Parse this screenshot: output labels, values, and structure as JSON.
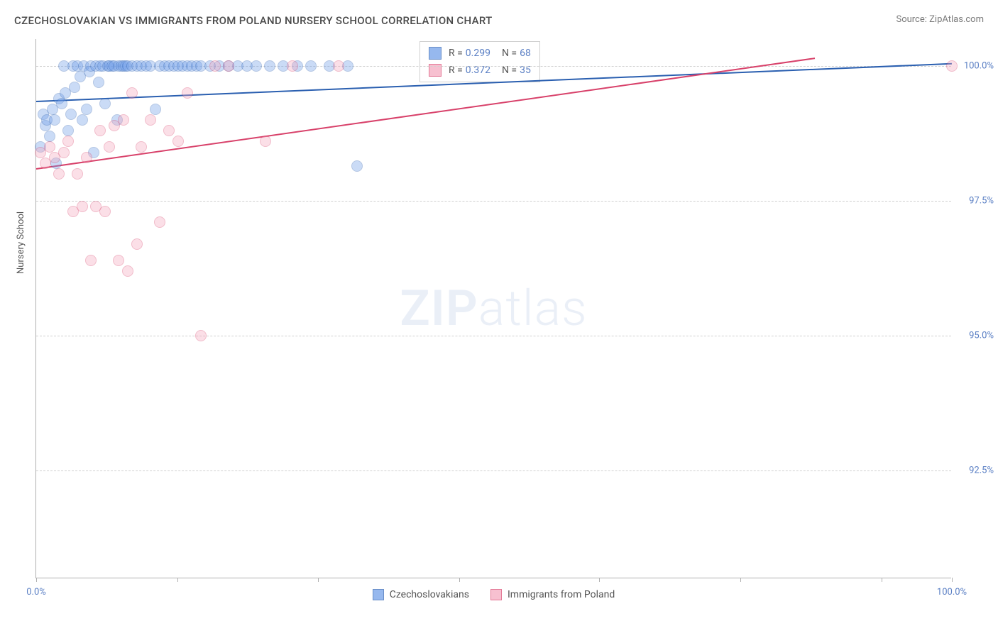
{
  "header": {
    "title": "CZECHOSLOVAKIAN VS IMMIGRANTS FROM POLAND NURSERY SCHOOL CORRELATION CHART",
    "source_label": "Source: ",
    "source_name": "ZipAtlas.com"
  },
  "watermark": {
    "bold": "ZIP",
    "light": "atlas"
  },
  "chart": {
    "type": "scatter",
    "y_axis_label": "Nursery School",
    "background_color": "#ffffff",
    "grid_color": "#d0d0d0",
    "axis_color": "#b0b0b0",
    "tick_label_color": "#5a7fc4",
    "xlim": [
      0,
      100
    ],
    "ylim": [
      90.5,
      100.5
    ],
    "x_ticks": [
      0,
      15.4,
      30.8,
      46.2,
      61.5,
      76.9,
      92.3,
      100
    ],
    "x_tick_labels": [
      "0.0%",
      "",
      "",
      "",
      "",
      "",
      "",
      "100.0%"
    ],
    "y_ticks": [
      92.5,
      95.0,
      97.5,
      100.0
    ],
    "y_tick_labels": [
      "92.5%",
      "95.0%",
      "97.5%",
      "100.0%"
    ],
    "marker_radius": 8,
    "marker_opacity": 0.35,
    "marker_border_width": 1.5,
    "series": [
      {
        "name": "Czechoslovakians",
        "fill_color": "#6b9be8",
        "border_color": "#2a5fb0",
        "trend": {
          "x1": 0,
          "y1": 99.35,
          "x2": 100,
          "y2": 100.05,
          "width": 2
        },
        "stats": {
          "R": "0.299",
          "N": "68"
        },
        "points": [
          [
            0.5,
            98.5
          ],
          [
            0.8,
            99.1
          ],
          [
            1.0,
            98.9
          ],
          [
            1.2,
            99.0
          ],
          [
            1.5,
            98.7
          ],
          [
            1.8,
            99.2
          ],
          [
            2.0,
            99.0
          ],
          [
            2.2,
            98.2
          ],
          [
            2.5,
            99.4
          ],
          [
            2.8,
            99.3
          ],
          [
            3.0,
            100.0
          ],
          [
            3.2,
            99.5
          ],
          [
            3.5,
            98.8
          ],
          [
            3.8,
            99.1
          ],
          [
            4.0,
            100.0
          ],
          [
            4.2,
            99.6
          ],
          [
            4.5,
            100.0
          ],
          [
            4.8,
            99.8
          ],
          [
            5.0,
            99.0
          ],
          [
            5.2,
            100.0
          ],
          [
            5.5,
            99.2
          ],
          [
            5.8,
            99.9
          ],
          [
            6.0,
            100.0
          ],
          [
            6.3,
            98.4
          ],
          [
            6.5,
            100.0
          ],
          [
            6.8,
            99.7
          ],
          [
            7.0,
            100.0
          ],
          [
            7.3,
            100.0
          ],
          [
            7.5,
            99.3
          ],
          [
            7.8,
            100.0
          ],
          [
            8.0,
            100.0
          ],
          [
            8.3,
            100.0
          ],
          [
            8.5,
            100.0
          ],
          [
            8.8,
            99.0
          ],
          [
            9.0,
            100.0
          ],
          [
            9.3,
            100.0
          ],
          [
            9.5,
            100.0
          ],
          [
            9.8,
            100.0
          ],
          [
            10.0,
            100.0
          ],
          [
            10.5,
            100.0
          ],
          [
            11.0,
            100.0
          ],
          [
            11.5,
            100.0
          ],
          [
            12.0,
            100.0
          ],
          [
            12.5,
            100.0
          ],
          [
            13.0,
            99.2
          ],
          [
            13.5,
            100.0
          ],
          [
            14.0,
            100.0
          ],
          [
            14.5,
            100.0
          ],
          [
            15.0,
            100.0
          ],
          [
            15.5,
            100.0
          ],
          [
            16.0,
            100.0
          ],
          [
            16.5,
            100.0
          ],
          [
            17.0,
            100.0
          ],
          [
            17.5,
            100.0
          ],
          [
            18.0,
            100.0
          ],
          [
            19.0,
            100.0
          ],
          [
            20.0,
            100.0
          ],
          [
            21.0,
            100.0
          ],
          [
            22.0,
            100.0
          ],
          [
            23.0,
            100.0
          ],
          [
            24.0,
            100.0
          ],
          [
            25.5,
            100.0
          ],
          [
            27.0,
            100.0
          ],
          [
            28.5,
            100.0
          ],
          [
            30.0,
            100.0
          ],
          [
            32.0,
            100.0
          ],
          [
            34.0,
            100.0
          ],
          [
            35.0,
            98.15
          ]
        ]
      },
      {
        "name": "Immigrants from Poland",
        "fill_color": "#f4a6bd",
        "border_color": "#d8416a",
        "trend": {
          "x1": 0,
          "y1": 98.1,
          "x2": 85,
          "y2": 100.15,
          "width": 2
        },
        "stats": {
          "R": "0.372",
          "N": "35"
        },
        "points": [
          [
            0.5,
            98.4
          ],
          [
            1.0,
            98.2
          ],
          [
            1.5,
            98.5
          ],
          [
            2.0,
            98.3
          ],
          [
            2.5,
            98.0
          ],
          [
            3.0,
            98.4
          ],
          [
            3.5,
            98.6
          ],
          [
            4.0,
            97.3
          ],
          [
            4.5,
            98.0
          ],
          [
            5.0,
            97.4
          ],
          [
            5.5,
            98.3
          ],
          [
            6.0,
            96.4
          ],
          [
            6.5,
            97.4
          ],
          [
            7.0,
            98.8
          ],
          [
            7.5,
            97.3
          ],
          [
            8.0,
            98.5
          ],
          [
            8.5,
            98.9
          ],
          [
            9.0,
            96.4
          ],
          [
            9.5,
            99.0
          ],
          [
            10.0,
            96.2
          ],
          [
            10.5,
            99.5
          ],
          [
            11.0,
            96.7
          ],
          [
            11.5,
            98.5
          ],
          [
            12.5,
            99.0
          ],
          [
            13.5,
            97.1
          ],
          [
            14.5,
            98.8
          ],
          [
            15.5,
            98.6
          ],
          [
            16.5,
            99.5
          ],
          [
            18.0,
            95.0
          ],
          [
            19.5,
            100.0
          ],
          [
            21.0,
            100.0
          ],
          [
            25.0,
            98.6
          ],
          [
            28.0,
            100.0
          ],
          [
            33.0,
            100.0
          ],
          [
            100.0,
            100.0
          ]
        ]
      }
    ]
  },
  "stats_box": {
    "R_label": "R = ",
    "N_label": "N = "
  },
  "y_label_fontsize": 13,
  "tick_fontsize": 13,
  "title_fontsize": 15
}
